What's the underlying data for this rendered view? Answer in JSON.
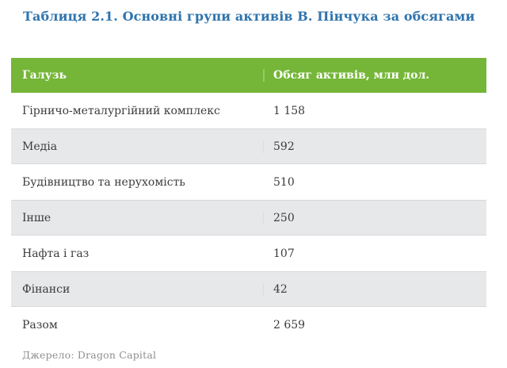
{
  "title": "Таблиця 2.1. Основні групи активів В. Пінчука за обсягами",
  "source": "Джерело: Dragon Capital",
  "colors": {
    "header_bg": "#75b638",
    "header_divider": "#98c967",
    "row_alt_bg": "#e7e8ea",
    "row_border": "#d6d8da",
    "alt_divider": "#dcdde0",
    "title_color": "#2f74ad",
    "body_text": "#3c3c3c",
    "header_text": "#ffffff",
    "source_text": "#8f8f8f",
    "page_bg": "#ffffff"
  },
  "table": {
    "columns": [
      "Галузь",
      "Обсяг активів, млн дол."
    ],
    "rows": [
      {
        "label": "Гірничо-металургійний комплекс",
        "value": "1 158"
      },
      {
        "label": "Медіа",
        "value": "592"
      },
      {
        "label": "Будівництво та нерухомість",
        "value": "510"
      },
      {
        "label": "Інше",
        "value": "250"
      },
      {
        "label": "Нафта і газ",
        "value": "107"
      },
      {
        "label": "Фінанси",
        "value": "42"
      },
      {
        "label": "Разом",
        "value": "2 659"
      }
    ]
  },
  "chart_data": {
    "type": "table",
    "title": "Таблиця 2.1. Основні групи активів В. Пінчука за обсягами",
    "columns": [
      "Галузь",
      "Обсяг активів, млн дол."
    ],
    "rows": [
      [
        "Гірничо-металургійний комплекс",
        1158
      ],
      [
        "Медіа",
        592
      ],
      [
        "Будівництво та нерухомість",
        510
      ],
      [
        "Інше",
        250
      ],
      [
        "Нафта і газ",
        107
      ],
      [
        "Фінанси",
        42
      ],
      [
        "Разом",
        2659
      ]
    ],
    "source": "Джерело: Dragon Capital"
  }
}
